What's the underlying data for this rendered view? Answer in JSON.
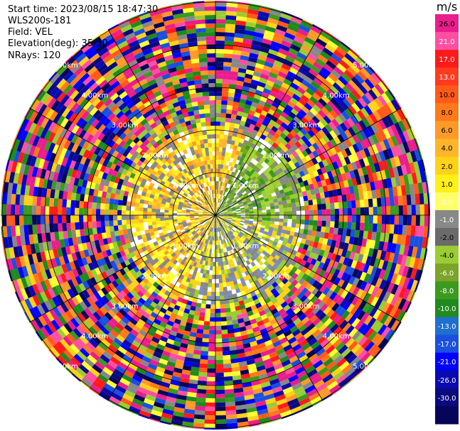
{
  "info_lines": [
    "Start time: 2023/08/15 18:47:30",
    "WLS200s-181",
    "Field: VEL",
    "Elevation(deg): 35.30",
    "NRays: 120"
  ],
  "colorbar": {
    "unit": "m/s",
    "ticks": [
      "26.0",
      "21.0",
      "17.0",
      "13.0",
      "10.0",
      "8.0",
      "6.0",
      "4.0",
      "2.0",
      "1.0",
      "0.0",
      "-1.0",
      "-2.0",
      "-4.0",
      "-6.0",
      "-8.0",
      "-10.0",
      "-13.0",
      "-17.0",
      "-21.0",
      "-26.0",
      "-30.0"
    ],
    "colors": [
      "#e91e8c",
      "#ff4fa3",
      "#ff1a1a",
      "#ff3b1f",
      "#ff5a1a",
      "#ff7a1a",
      "#ff9a2a",
      "#ffb52a",
      "#ffd21a",
      "#ffef1a",
      "#ffff66",
      "#888888",
      "#6a6a6a",
      "#9acd32",
      "#7ba428",
      "#3c9a1e",
      "#1f8a1f",
      "#1e6fd0",
      "#1a4fe0",
      "#0000ff",
      "#0a0ab0",
      "#0a0a80",
      "#05055a"
    ]
  },
  "chart_data": {
    "type": "heatmap",
    "subtype": "radar-ppi",
    "field": "VEL",
    "units": "m/s",
    "nrays": 120,
    "elevation_deg": 35.3,
    "ring_labels": [
      "1.00km",
      "2.00km",
      "3.00km",
      "4.00km",
      "5.00km"
    ],
    "range_rings_km": [
      1,
      2,
      3,
      4,
      5
    ],
    "azimuth_lines_deg": [
      0,
      30,
      60,
      90,
      120,
      150,
      180,
      210,
      240,
      270,
      300,
      330
    ],
    "value_range": [
      -30,
      26
    ],
    "notes": "velocity data mostly noise beyond ~2 km; near-field western half positive (yellow/orange), eastern half negative (green)"
  }
}
